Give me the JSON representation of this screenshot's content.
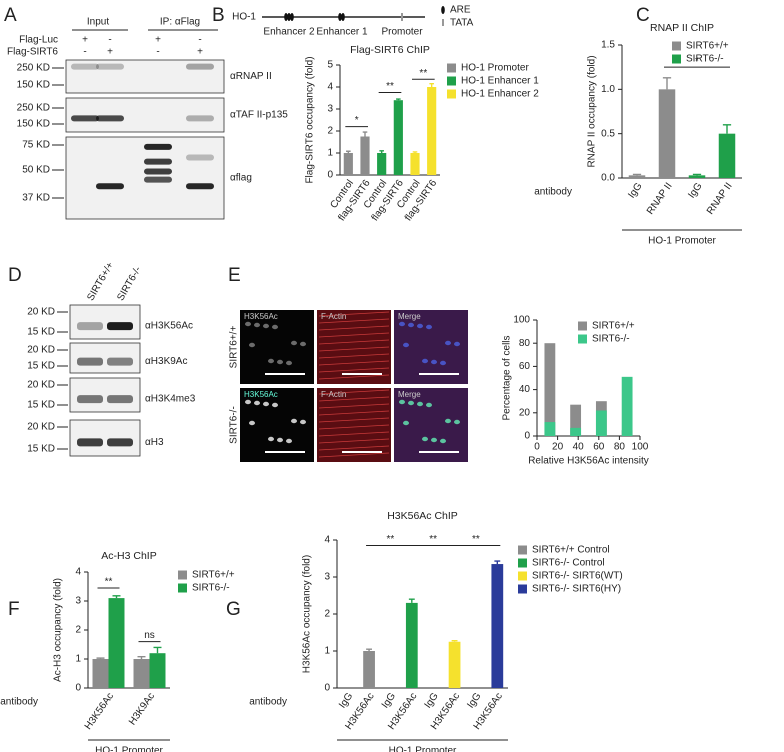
{
  "panel_labels": [
    "A",
    "B",
    "C",
    "D",
    "E",
    "F",
    "G"
  ],
  "blot_a": {
    "input": "Input",
    "ip": "IP: αFlag",
    "rows": [
      {
        "name": "Flag-Luc",
        "lanes": [
          "+",
          "-",
          "+",
          "-"
        ]
      },
      {
        "name": "Flag-SIRT6",
        "lanes": [
          "-",
          "+",
          "-",
          "+"
        ]
      }
    ],
    "strips": [
      {
        "markers": [
          "250 KD",
          "150 KD"
        ],
        "antibody": "αRNAP II"
      },
      {
        "markers": [
          "250 KD",
          "150 KD"
        ],
        "antibody": "αTAF II-p135"
      },
      {
        "markers": [
          "75 KD",
          "50 KD",
          "37 KD"
        ],
        "antibody": "αflag"
      }
    ]
  },
  "diagram_b": {
    "gene": "HO-1",
    "regions": [
      "Enhancer 2",
      "Enhancer 1",
      "Promoter"
    ],
    "legend": [
      "ARE",
      "TATA"
    ]
  },
  "blot_d": {
    "lanes": [
      "SIRT6+/+",
      "SIRT6-/-"
    ],
    "strips": [
      {
        "markers": [
          "20 KD",
          "15 KD"
        ],
        "antibody": "αH3K56Ac"
      },
      {
        "markers": [
          "20 KD",
          "15 KD"
        ],
        "antibody": "αH3K9Ac"
      },
      {
        "markers": [
          "20 KD",
          "15 KD"
        ],
        "antibody": "αH3K4me3"
      },
      {
        "markers": [
          "20 KD",
          "15 KD"
        ],
        "antibody": "αH3"
      }
    ]
  },
  "images_e": {
    "rows": [
      "SIRT6+/+",
      "SIRT6-/-"
    ],
    "channels": [
      [
        "H3K56Ac",
        "F-Actin",
        "Merge"
      ],
      [
        "H3K56Ac",
        "F-Actin",
        "Merge"
      ]
    ]
  },
  "chart_data": [
    {
      "type": "bar",
      "title": "Flag-SIRT6 ChIP",
      "y_label": "Flag-SIRT6 occupancy (fold)",
      "categories": [
        "Control",
        "flag-SIRT6",
        "Control",
        "flag-SIRT6",
        "Control",
        "flag-SIRT6"
      ],
      "series": [
        {
          "name": "HO-1 Promoter",
          "color": "#8c8c8c",
          "values": [
            1.0,
            1.75,
            null,
            null,
            null,
            null
          ],
          "errors": [
            0.08,
            0.2,
            null,
            null,
            null,
            null
          ]
        },
        {
          "name": "HO-1 Enhancer 1",
          "color": "#1fa04a",
          "values": [
            null,
            null,
            1.0,
            3.4,
            null,
            null
          ],
          "errors": [
            null,
            null,
            0.1,
            0.05,
            null,
            null
          ]
        },
        {
          "name": "HO-1 Enhancer 2",
          "color": "#f5e12d",
          "values": [
            null,
            null,
            null,
            null,
            1.0,
            4.0
          ],
          "errors": [
            null,
            null,
            null,
            null,
            0.05,
            0.15
          ]
        }
      ],
      "ylim": [
        0,
        5
      ],
      "yticks": [
        0,
        1,
        2,
        3,
        4,
        5
      ],
      "annotations": [
        "*",
        "**",
        "**"
      ]
    },
    {
      "type": "bar",
      "title": "RNAP II ChIP",
      "y_label": "RNAP II occupancy (fold)",
      "categories": [
        "IgG",
        "RNAP II",
        "IgG",
        "RNAP II"
      ],
      "series": [
        {
          "name": "SIRT6+/+",
          "color": "#8c8c8c",
          "values": [
            0.03,
            1.0,
            null,
            null
          ],
          "errors": [
            0.01,
            0.13,
            null,
            null
          ]
        },
        {
          "name": "SIRT6-/-",
          "color": "#1fa04a",
          "values": [
            null,
            null,
            0.03,
            0.5
          ],
          "errors": [
            null,
            null,
            0.01,
            0.1
          ]
        }
      ],
      "ylim": [
        0,
        1.5
      ],
      "yticks": [
        {
          "value": 0,
          "label": "0.0"
        },
        0.5,
        {
          "value": 1,
          "label": "1.0"
        },
        1.5
      ],
      "annotations": [
        "*"
      ],
      "axis_caption": "antibody",
      "group_label": "HO-1 Promoter"
    },
    {
      "type": "histogram",
      "y_label": "Percentage of cells",
      "x_label": "Relative H3K56Ac intensity",
      "bins": [
        0,
        25,
        50,
        75,
        100
      ],
      "series": [
        {
          "name": "SIRT6+/+",
          "color": "#8c8c8c",
          "values": [
            80,
            27,
            30,
            5
          ]
        },
        {
          "name": "SIRT6-/-",
          "color": "#3cc78a",
          "values": [
            12,
            7,
            22,
            51
          ]
        }
      ],
      "xlim": [
        0,
        100
      ],
      "xticks": [
        0,
        20,
        40,
        60,
        80,
        100
      ],
      "ylim": [
        0,
        100
      ],
      "yticks": [
        0,
        20,
        40,
        60,
        80,
        100
      ]
    },
    {
      "type": "bar",
      "title": "Ac-H3 ChIP",
      "y_label": "Ac-H3 occupancy (fold)",
      "categories": [
        "H3K56Ac",
        "H3K9Ac"
      ],
      "series": [
        {
          "name": "SIRT6+/+",
          "color": "#8c8c8c",
          "values": [
            1.0,
            1.0
          ],
          "errors": [
            0.03,
            0.08
          ]
        },
        {
          "name": "SIRT6-/-",
          "color": "#1fa04a",
          "values": [
            3.1,
            1.2
          ],
          "errors": [
            0.08,
            0.2
          ]
        }
      ],
      "ylim": [
        0,
        4
      ],
      "yticks": [
        0,
        1,
        2,
        3,
        4
      ],
      "annotations": [
        "**",
        "ns"
      ],
      "axis_caption": "antibody",
      "group_label": "HO-1 Promoter"
    },
    {
      "type": "bar",
      "title": "H3K56Ac ChIP",
      "y_label": "H3K56Ac occupancy (fold)",
      "categories": [
        "IgG",
        "H3K56Ac",
        "IgG",
        "H3K56Ac",
        "IgG",
        "H3K56Ac",
        "IgG",
        "H3K56Ac"
      ],
      "series": [
        {
          "name": "SIRT6+/+ Control",
          "color": "#8c8c8c",
          "values": [
            0,
            1.0,
            null,
            null,
            null,
            null,
            null,
            null
          ],
          "errors": [
            null,
            0.05,
            null,
            null,
            null,
            null,
            null,
            null
          ]
        },
        {
          "name": "SIRT6-/-  Control",
          "color": "#1fa04a",
          "values": [
            null,
            null,
            0,
            2.3,
            null,
            null,
            null,
            null
          ],
          "errors": [
            null,
            null,
            null,
            0.1,
            null,
            null,
            null,
            null
          ]
        },
        {
          "name": "SIRT6-/-  SIRT6(WT)",
          "color": "#f5e12d",
          "values": [
            null,
            null,
            null,
            null,
            0,
            1.25,
            null,
            null
          ],
          "errors": [
            null,
            null,
            null,
            null,
            null,
            0.03,
            null,
            null
          ]
        },
        {
          "name": "SIRT6-/-  SIRT6(HY)",
          "color": "#2a3b9a",
          "values": [
            null,
            null,
            null,
            null,
            null,
            null,
            0,
            3.35
          ],
          "errors": [
            null,
            null,
            null,
            null,
            null,
            null,
            null,
            0.08
          ]
        }
      ],
      "ylim": [
        0,
        4
      ],
      "yticks": [
        0,
        1,
        2,
        3,
        4
      ],
      "annotations": [
        "**",
        "**",
        "**"
      ],
      "axis_caption": "antibody",
      "group_label": "HO-1 Promoter"
    }
  ]
}
